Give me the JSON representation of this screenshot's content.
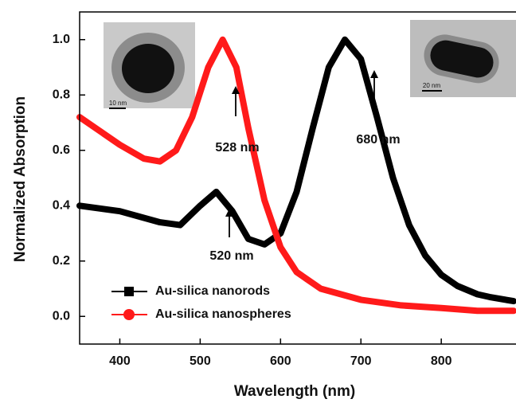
{
  "chart_data": {
    "type": "line",
    "x_label": "Wavelength (nm)",
    "y_label": "Normalized Absorption",
    "xlim": [
      350,
      890
    ],
    "ylim": [
      -0.1,
      1.1
    ],
    "xticks": [
      400,
      500,
      600,
      700,
      800
    ],
    "yticks": [
      {
        "value": 0,
        "label": "0.0"
      },
      0.2,
      0.4,
      0.6,
      0.8,
      {
        "value": 1,
        "label": "1.0"
      }
    ],
    "legend": "lower left",
    "series": [
      {
        "name": "Au-silica nanorods",
        "color": "#000000",
        "marker": "square",
        "x": [
          350,
          400,
          450,
          475,
          500,
          520,
          540,
          560,
          580,
          600,
          620,
          640,
          660,
          680,
          700,
          720,
          740,
          760,
          780,
          800,
          820,
          845,
          860,
          890
        ],
        "values": [
          0.4,
          0.38,
          0.34,
          0.33,
          0.4,
          0.45,
          0.38,
          0.28,
          0.26,
          0.3,
          0.45,
          0.68,
          0.9,
          1.0,
          0.93,
          0.72,
          0.5,
          0.33,
          0.22,
          0.15,
          0.11,
          0.08,
          0.07,
          0.055
        ]
      },
      {
        "name": "Au-silica nanospheres",
        "color": "#ff1a1a",
        "marker": "circle",
        "x": [
          350,
          380,
          400,
          430,
          450,
          470,
          490,
          510,
          528,
          545,
          560,
          580,
          600,
          620,
          650,
          700,
          750,
          800,
          845,
          890
        ],
        "values": [
          0.72,
          0.66,
          0.62,
          0.57,
          0.56,
          0.6,
          0.72,
          0.9,
          1.0,
          0.9,
          0.68,
          0.42,
          0.25,
          0.16,
          0.1,
          0.06,
          0.04,
          0.03,
          0.02,
          0.02
        ]
      }
    ],
    "annotations": [
      "528 nm",
      "680 nm",
      "520 nm",
      "10 nm",
      "20 nm"
    ]
  }
}
